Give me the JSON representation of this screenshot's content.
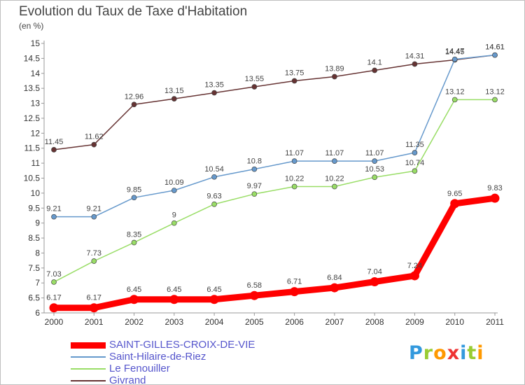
{
  "chart_data": {
    "type": "line",
    "title": "Evolution du Taux de Taxe d'Habitation",
    "subtitle": "(en %)",
    "x": [
      "2000",
      "2001",
      "2002",
      "2003",
      "2004",
      "2005",
      "2006",
      "2007",
      "2008",
      "2009",
      "2010",
      "2011"
    ],
    "ylim": [
      6,
      15
    ],
    "yticks": [
      "6",
      "6.5",
      "7",
      "7.5",
      "8",
      "8.5",
      "9",
      "9.5",
      "10",
      "10.5",
      "11",
      "11.5",
      "12",
      "12.5",
      "13",
      "13.5",
      "14",
      "14.5",
      "15"
    ],
    "grid": false,
    "legend_position": "bottom-left",
    "series": [
      {
        "name": "SAINT-GILLES-CROIX-DE-VIE",
        "color": "#ff0000",
        "values": [
          6.17,
          6.17,
          6.45,
          6.45,
          6.45,
          6.58,
          6.71,
          6.84,
          7.04,
          7.24,
          9.65,
          9.83
        ],
        "labels": [
          "6.17",
          "6.17",
          "6.45",
          "6.45",
          "6.45",
          "6.58",
          "6.71",
          "6.84",
          "7.04",
          "7.24",
          "9.65",
          "9.83"
        ]
      },
      {
        "name": "Saint-Hilaire-de-Riez",
        "color": "#6699cc",
        "values": [
          9.21,
          9.21,
          9.85,
          10.09,
          10.54,
          10.8,
          11.07,
          11.07,
          11.07,
          11.35,
          14.47,
          14.61
        ],
        "labels": [
          "9.21",
          "9.21",
          "9.85",
          "10.09",
          "10.54",
          "10.8",
          "11.07",
          "11.07",
          "11.07",
          "11.35",
          "14.47",
          "14.61"
        ]
      },
      {
        "name": "Le Fenouiller",
        "color": "#99dd66",
        "values": [
          7.03,
          7.73,
          8.35,
          9,
          9.63,
          9.97,
          10.22,
          10.22,
          10.53,
          10.74,
          13.12,
          13.12
        ],
        "labels": [
          "7.03",
          "7.73",
          "8.35",
          "9",
          "9.63",
          "9.97",
          "10.22",
          "10.22",
          "10.53",
          "10.74",
          "13.12",
          "13.12"
        ]
      },
      {
        "name": "Givrand",
        "color": "#663333",
        "values": [
          11.45,
          11.62,
          12.96,
          13.15,
          13.35,
          13.55,
          13.75,
          13.89,
          14.1,
          14.31,
          14.45,
          14.61
        ],
        "labels": [
          "11.45",
          "11.62",
          "12.96",
          "13.15",
          "13.35",
          "13.55",
          "13.75",
          "13.89",
          "14.1",
          "14.31",
          "14.45",
          "14.61"
        ]
      }
    ]
  },
  "logo": {
    "letters": [
      "P",
      "r",
      "o",
      "x",
      "i",
      "t",
      "i"
    ],
    "colors": [
      "#3399dd",
      "#99cc33",
      "#ff9900",
      "#ee3333",
      "#3399dd",
      "#99cc33",
      "#ff9900"
    ]
  }
}
